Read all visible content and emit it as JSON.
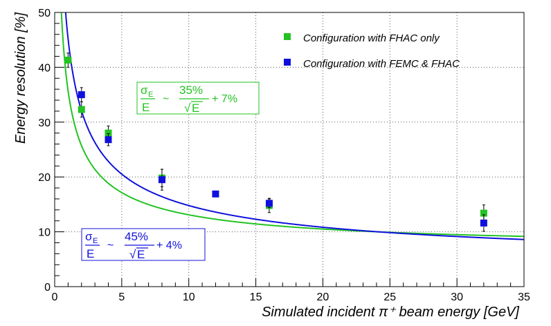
{
  "chart_data": {
    "type": "scatter",
    "title": "",
    "xlabel": "Simulated incident   π⁺ beam energy [GeV]",
    "ylabel": "Energy resolution [%]",
    "xlim": [
      0,
      35
    ],
    "ylim": [
      0,
      50
    ],
    "x_ticks": [
      "0",
      "5",
      "10",
      "15",
      "20",
      "25",
      "30",
      "35"
    ],
    "y_ticks": [
      "0",
      "10",
      "20",
      "30",
      "40",
      "50"
    ],
    "grid": true,
    "legend_position": "top-right",
    "series": [
      {
        "name": "Configuration with FHAC only",
        "color": "#22c322",
        "points": [
          {
            "x": 1,
            "y": 41.3,
            "err": 1.3
          },
          {
            "x": 2,
            "y": 32.3,
            "err": 1.4
          },
          {
            "x": 4,
            "y": 28.0,
            "err": 1.3
          },
          {
            "x": 8,
            "y": 19.8,
            "err": 1.6
          },
          {
            "x": 16,
            "y": 14.8,
            "err": 1.3
          },
          {
            "x": 32,
            "y": 13.4,
            "err": 1.5
          }
        ],
        "fit": {
          "stochastic": 35,
          "constant": 7
        },
        "fit_label": {
          "sigma": "σ",
          "sub": "E",
          "den": "E",
          "tilde": "~",
          "num": "35%",
          "root": "√",
          "sqrt_arg": "E",
          "const": "+ 7%"
        }
      },
      {
        "name": "Configuration with FEMC & FHAC",
        "color": "#1010dd",
        "points": [
          {
            "x": 2,
            "y": 35.0,
            "err": 1.3
          },
          {
            "x": 4,
            "y": 26.8,
            "err": 1.1
          },
          {
            "x": 8,
            "y": 19.5,
            "err": 1.9
          },
          {
            "x": 12,
            "y": 16.9,
            "err": 0.5
          },
          {
            "x": 16,
            "y": 15.2,
            "err": 0.8
          },
          {
            "x": 32,
            "y": 11.6,
            "err": 1.5
          }
        ],
        "fit": {
          "stochastic": 45,
          "constant": 4
        },
        "fit_label": {
          "sigma": "σ",
          "sub": "E",
          "den": "E",
          "tilde": "~",
          "num": "45%",
          "root": "√",
          "sqrt_arg": "E",
          "const": "+ 4%"
        }
      }
    ]
  }
}
